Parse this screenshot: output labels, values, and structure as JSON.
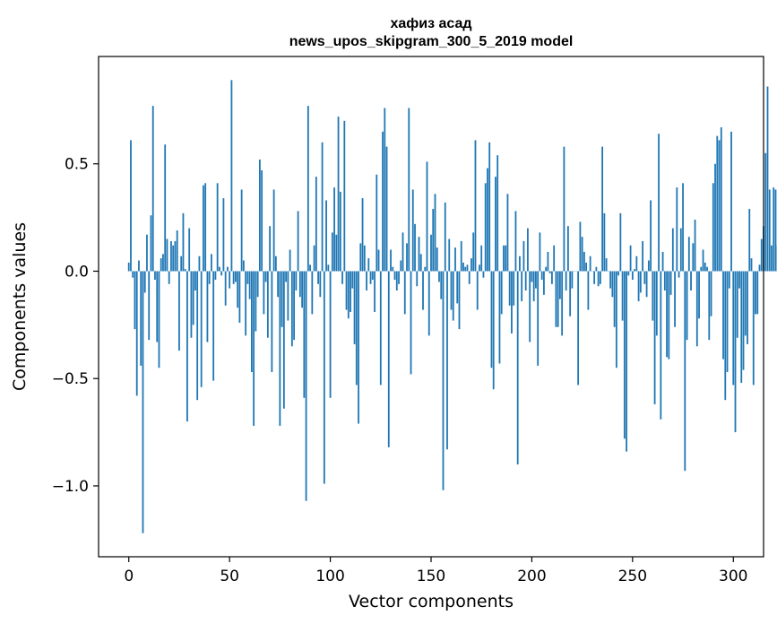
{
  "chart_data": {
    "type": "bar",
    "title": "хафиз асад",
    "subtitle": "news_upos_skipgram_300_5_2019 model",
    "xlabel": "Vector components",
    "ylabel": "Components values",
    "xlim": [
      -15,
      315
    ],
    "ylim": [
      -1.33,
      1.0
    ],
    "xticks": [
      0,
      50,
      100,
      150,
      200,
      250,
      300
    ],
    "xtick_labels": [
      "0",
      "50",
      "100",
      "150",
      "200",
      "250",
      "300"
    ],
    "yticks": [
      -1.0,
      -0.5,
      0.0,
      0.5
    ],
    "ytick_labels": [
      "−1.0",
      "−0.5",
      "0.0",
      "0.5"
    ],
    "grid": false,
    "bar_color": "#1f77b4",
    "values": [
      0.04,
      0.61,
      -0.03,
      -0.27,
      -0.58,
      0.05,
      -0.44,
      -1.22,
      -0.1,
      0.17,
      -0.32,
      0.26,
      0.77,
      -0.04,
      -0.33,
      -0.45,
      0.06,
      0.08,
      0.59,
      0.15,
      -0.06,
      0.14,
      0.12,
      0.14,
      0.19,
      -0.37,
      0.07,
      0.27,
      0.01,
      -0.7,
      0.2,
      -0.31,
      -0.25,
      -0.09,
      -0.6,
      0.07,
      -0.54,
      0.4,
      0.41,
      -0.33,
      -0.06,
      0.08,
      -0.51,
      -0.04,
      0.41,
      0.02,
      -0.02,
      0.34,
      -0.16,
      0.02,
      -0.08,
      0.89,
      -0.06,
      -0.05,
      -0.17,
      -0.24,
      0.38,
      0.05,
      -0.3,
      -0.06,
      -0.13,
      -0.47,
      -0.72,
      -0.28,
      -0.12,
      0.52,
      0.47,
      -0.2,
      -0.05,
      -0.31,
      0.21,
      -0.47,
      0.38,
      0.07,
      -0.12,
      -0.72,
      -0.26,
      -0.64,
      -0.05,
      -0.23,
      0.1,
      -0.35,
      -0.32,
      -0.09,
      0.28,
      -0.12,
      -0.17,
      -0.59,
      -1.07,
      0.77,
      0.03,
      -0.2,
      0.12,
      0.44,
      -0.06,
      -0.12,
      0.6,
      -0.99,
      0.33,
      0.03,
      -0.59,
      0.18,
      0.39,
      0.17,
      0.72,
      0.37,
      -0.06,
      0.7,
      -0.18,
      -0.22,
      -0.19,
      -0.08,
      -0.34,
      -0.53,
      -0.71,
      0.13,
      0.34,
      0.12,
      -0.09,
      0.06,
      -0.06,
      -0.04,
      -0.19,
      0.45,
      0.1,
      -0.53,
      0.65,
      0.76,
      0.58,
      -0.82,
      0.1,
      0.02,
      -0.04,
      -0.09,
      -0.06,
      0.05,
      0.18,
      -0.2,
      0.13,
      0.76,
      -0.48,
      0.38,
      0.22,
      -0.07,
      0.16,
      0.08,
      -0.18,
      0.02,
      0.51,
      -0.3,
      0.17,
      0.29,
      0.36,
      0.11,
      -0.05,
      -0.13,
      -1.02,
      0.32,
      -0.83,
      0.15,
      -0.18,
      -0.23,
      0.11,
      -0.15,
      -0.27,
      0.14,
      0.04,
      0.02,
      0.03,
      -0.06,
      0.06,
      0.18,
      0.61,
      -0.18,
      0.03,
      0.12,
      -0.03,
      0.41,
      0.48,
      0.6,
      -0.45,
      -0.55,
      0.44,
      0.54,
      -0.43,
      -0.2,
      0.12,
      0.12,
      0.36,
      -0.16,
      -0.29,
      -0.16,
      0.28,
      -0.9,
      0.07,
      -0.14,
      0.14,
      -0.09,
      0.2,
      -0.33,
      -0.05,
      -0.14,
      -0.08,
      -0.44,
      0.18,
      -0.04,
      -0.11,
      0.02,
      0.09,
      -0.01,
      -0.06,
      0.12,
      -0.26,
      -0.26,
      -0.13,
      -0.3,
      0.58,
      -0.09,
      0.21,
      -0.21,
      -0.08,
      0.0,
      0.0,
      -0.53,
      0.23,
      0.16,
      0.09,
      0.04,
      -0.18,
      0.07,
      0.0,
      -0.06,
      0.02,
      -0.07,
      -0.06,
      0.58,
      0.27,
      0.06,
      0.0,
      -0.08,
      -0.12,
      -0.26,
      -0.45,
      -0.02,
      0.27,
      -0.23,
      -0.78,
      -0.84,
      -0.02,
      0.12,
      -0.04,
      0.01,
      0.07,
      -0.14,
      -0.1,
      0.14,
      -0.06,
      -0.12,
      0.05,
      0.33,
      -0.23,
      -0.62,
      -0.3,
      0.64,
      -0.69,
      0.09,
      -0.09,
      -0.4,
      -0.41,
      -0.11,
      0.2,
      -0.26,
      0.39,
      -0.03,
      0.2,
      0.41,
      -0.93,
      -0.32,
      0.16,
      -0.09,
      0.13,
      0.24,
      -0.35,
      -0.22,
      0.02,
      0.1,
      0.04,
      0.02,
      -0.32,
      -0.21,
      0.41,
      0.5,
      0.63,
      0.61,
      0.67,
      -0.41,
      -0.6,
      -0.47,
      -0.08,
      0.65,
      -0.53,
      -0.75,
      -0.31,
      -0.08,
      -0.52,
      -0.46,
      -0.3,
      -0.34,
      0.29,
      0.06,
      -0.53,
      -0.2,
      -0.2,
      0.03,
      0.15,
      0.21,
      0.55,
      0.86,
      0.38,
      0.12,
      0.39,
      0.38,
      0.12
    ]
  }
}
